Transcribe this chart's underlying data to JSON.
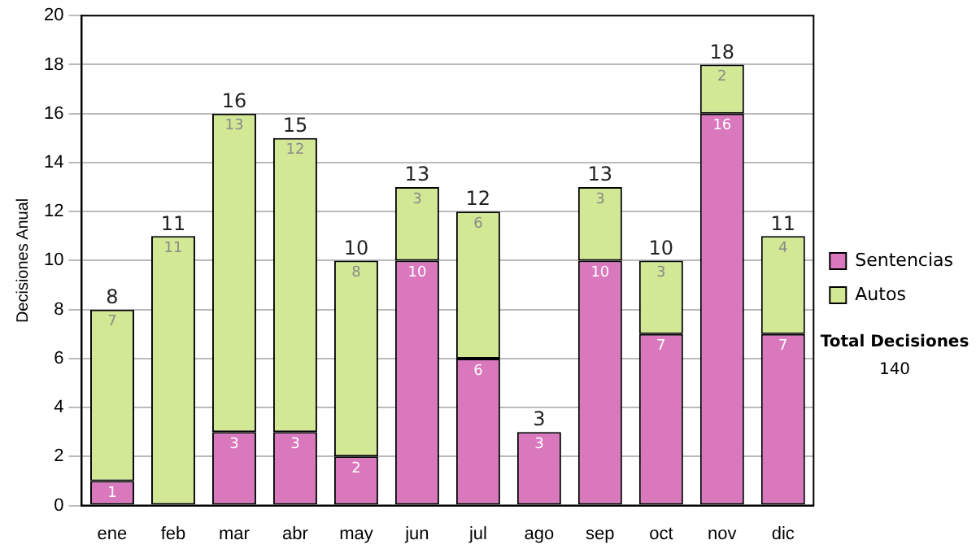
{
  "chart_data": {
    "type": "bar",
    "stacked": true,
    "ylabel": "Decisiones Anual",
    "categories": [
      "ene",
      "feb",
      "mar",
      "abr",
      "may",
      "jun",
      "jul",
      "ago",
      "sep",
      "oct",
      "nov",
      "dic"
    ],
    "series": [
      {
        "name": "Sentencias",
        "color": "#d978bd",
        "values": [
          1,
          0,
          3,
          3,
          2,
          10,
          6,
          3,
          10,
          7,
          16,
          7
        ],
        "value_labels": [
          "1",
          null,
          "3",
          "3",
          "2",
          "10",
          "6",
          "3",
          "10",
          "7",
          "16",
          "7"
        ]
      },
      {
        "name": "Autos",
        "color": "#d2e894",
        "values": [
          7,
          11,
          13,
          12,
          8,
          3,
          6,
          0,
          3,
          3,
          2,
          4
        ],
        "value_labels": [
          "7",
          "11",
          "13",
          "12",
          "8",
          "3",
          "6",
          null,
          "3",
          "3",
          "2",
          "4"
        ]
      }
    ],
    "totals": [
      "8",
      "11",
      "16",
      "15",
      "10",
      "13",
      "12",
      "3",
      "13",
      "10",
      "18",
      "11"
    ],
    "ylim": [
      0,
      20
    ],
    "yticks": [
      0,
      2,
      4,
      6,
      8,
      10,
      12,
      14,
      16,
      18,
      20
    ],
    "grid": "y",
    "legend": "right",
    "annotations": [
      "Total Decisiones",
      "140"
    ]
  }
}
